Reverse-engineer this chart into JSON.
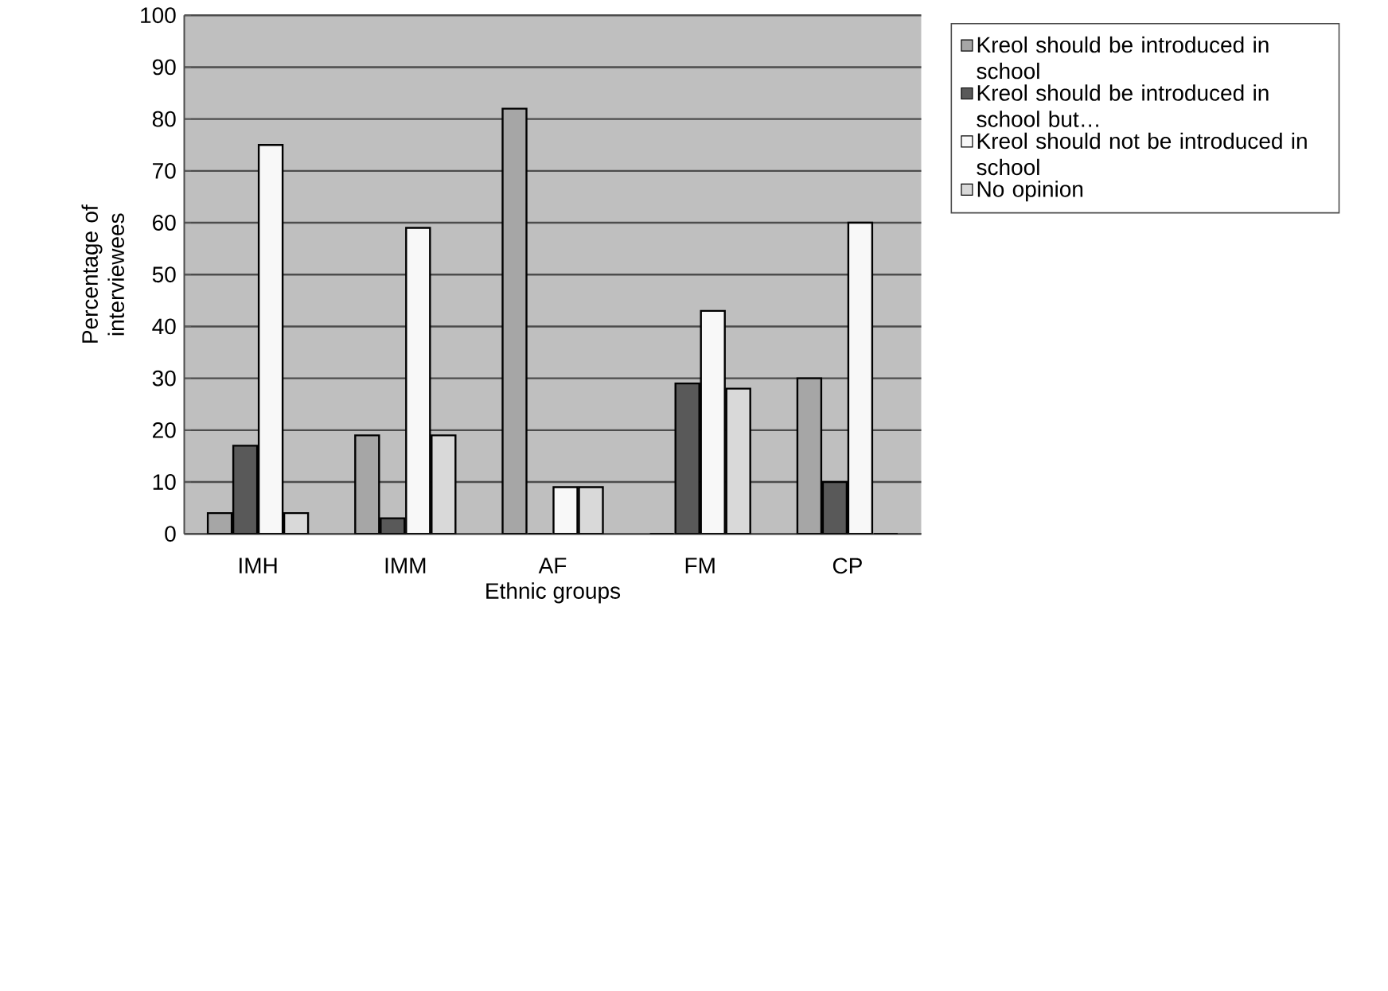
{
  "chart_data": {
    "type": "bar",
    "xlabel": "Ethnic groups",
    "ylabel": "Percentage of interviewees",
    "categories": [
      "IMH",
      "IMM",
      "AF",
      "FM",
      "CP"
    ],
    "series": [
      {
        "name": "Kreol should be introduced in school",
        "color": "#a6a6a6",
        "values": [
          4,
          19,
          82,
          0,
          30
        ]
      },
      {
        "name": "Kreol should be introduced in school but…",
        "color": "#595959",
        "values": [
          17,
          3,
          0,
          29,
          10
        ]
      },
      {
        "name": "Kreol should not be introduced in school",
        "color": "#f8f8f8",
        "values": [
          75,
          59,
          9,
          43,
          60
        ]
      },
      {
        "name": "No opinion",
        "color": "#d9d9d9",
        "values": [
          4,
          19,
          9,
          28,
          0
        ]
      }
    ],
    "ylim": [
      0,
      100
    ],
    "yticks": [
      0,
      10,
      20,
      30,
      40,
      50,
      60,
      70,
      80,
      90,
      100
    ],
    "grid": "y",
    "legend": "right"
  }
}
